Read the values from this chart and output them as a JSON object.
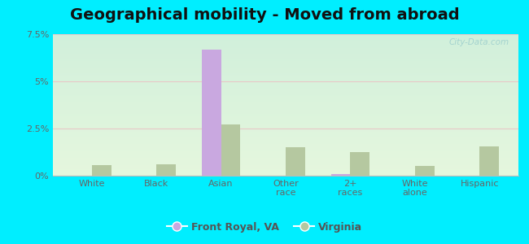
{
  "title": "Geographical mobility - Moved from abroad",
  "categories": [
    "White",
    "Black",
    "Asian",
    "Other\nrace",
    "2+\nraces",
    "White\nalone",
    "Hispanic"
  ],
  "front_royal_values": [
    0.0,
    0.0,
    6.7,
    0.0,
    0.1,
    0.0,
    0.0
  ],
  "virginia_values": [
    0.55,
    0.6,
    2.7,
    1.5,
    1.25,
    0.5,
    1.55
  ],
  "front_royal_color": "#c9a8e0",
  "virginia_color": "#b5c8a0",
  "bar_width": 0.3,
  "ylim": [
    0,
    7.5
  ],
  "yticks": [
    0,
    2.5,
    5.0,
    7.5
  ],
  "ytick_labels": [
    "0%",
    "2.5%",
    "5%",
    "7.5%"
  ],
  "outer_background": "#00eeff",
  "title_fontsize": 14,
  "legend_labels": [
    "Front Royal, VA",
    "Virginia"
  ],
  "watermark": "City-Data.com",
  "grid_color": "#e8c8c8",
  "spine_color": "#bbbbbb"
}
